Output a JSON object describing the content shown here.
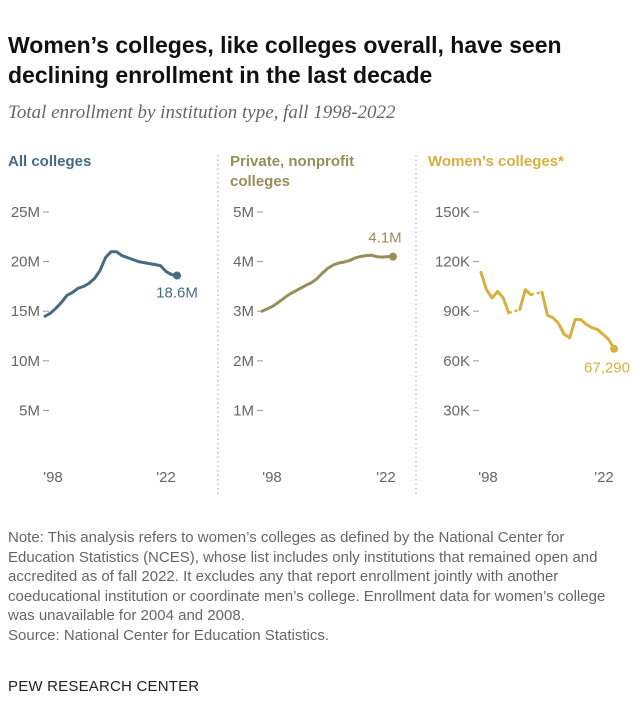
{
  "title": "Women’s colleges, like colleges overall, have seen declining enrollment in the last decade",
  "subtitle": "Total enrollment by institution type, fall 1998-2022",
  "note": "Note: This analysis refers to women’s colleges as defined by the National Center for Education Statistics (NCES), whose list includes only institutions that remained open and accredited as of fall 2022. It excludes any that report enrollment jointly with another coeducational institution or coordinate men’s college. Enrollment data for women’s college was unavailable for 2004 and 2008.",
  "source": "Source: National Center for Education Statistics.",
  "footer": "PEW RESEARCH CENTER",
  "chart_data": [
    {
      "type": "line",
      "title": "All colleges",
      "color": "#466b83",
      "y_unit": "M",
      "ylim": [
        0,
        25
      ],
      "yticks": [
        5,
        10,
        15,
        20,
        25
      ],
      "ytick_labels": [
        "5M",
        "10M",
        "15M",
        "20M",
        "25M"
      ],
      "xtick_labels": [
        "'98",
        "'22"
      ],
      "end_label": "18.6M",
      "x": [
        1998,
        1999,
        2000,
        2001,
        2002,
        2003,
        2004,
        2005,
        2006,
        2007,
        2008,
        2009,
        2010,
        2011,
        2012,
        2013,
        2014,
        2015,
        2016,
        2017,
        2018,
        2019,
        2020,
        2021,
        2022
      ],
      "values": [
        14.5,
        14.8,
        15.3,
        15.9,
        16.6,
        16.9,
        17.3,
        17.5,
        17.8,
        18.3,
        19.1,
        20.4,
        21.0,
        21.0,
        20.6,
        20.4,
        20.2,
        20.0,
        19.9,
        19.8,
        19.7,
        19.6,
        19.0,
        18.7,
        18.6
      ]
    },
    {
      "type": "line",
      "title": "Private, nonprofit colleges",
      "color": "#988e59",
      "y_unit": "M",
      "ylim": [
        0,
        5
      ],
      "yticks": [
        1,
        2,
        3,
        4,
        5
      ],
      "ytick_labels": [
        "1M",
        "2M",
        "3M",
        "4M",
        "5M"
      ],
      "xtick_labels": [
        "'98",
        "'22"
      ],
      "end_label": "4.1M",
      "x": [
        1998,
        1999,
        2000,
        2001,
        2002,
        2003,
        2004,
        2005,
        2006,
        2007,
        2008,
        2009,
        2010,
        2011,
        2012,
        2013,
        2014,
        2015,
        2016,
        2017,
        2018,
        2019,
        2020,
        2021,
        2022
      ],
      "values": [
        3.0,
        3.05,
        3.1,
        3.18,
        3.26,
        3.34,
        3.4,
        3.46,
        3.52,
        3.57,
        3.65,
        3.76,
        3.86,
        3.93,
        3.97,
        3.99,
        4.02,
        4.07,
        4.1,
        4.12,
        4.13,
        4.1,
        4.09,
        4.1,
        4.1
      ]
    },
    {
      "type": "line",
      "title": "Women’s colleges*",
      "color": "#d8b03f",
      "y_unit": "K",
      "ylim": [
        0,
        150000
      ],
      "yticks": [
        30000,
        60000,
        90000,
        120000,
        150000
      ],
      "ytick_labels": [
        "30K",
        "60K",
        "90K",
        "120K",
        "150K"
      ],
      "xtick_labels": [
        "'98",
        "'22"
      ],
      "end_label": "67,290",
      "missing_years": [
        2004,
        2008
      ],
      "x": [
        1998,
        1999,
        2000,
        2001,
        2002,
        2003,
        2004,
        2005,
        2006,
        2007,
        2008,
        2009,
        2010,
        2011,
        2012,
        2013,
        2014,
        2015,
        2016,
        2017,
        2018,
        2019,
        2020,
        2021,
        2022
      ],
      "values": [
        113500,
        103000,
        98000,
        102000,
        98000,
        89000,
        null,
        91000,
        103000,
        100000,
        null,
        101500,
        87500,
        86000,
        82500,
        76000,
        74000,
        85000,
        85000,
        82000,
        80000,
        79000,
        76000,
        73000,
        67290
      ]
    }
  ]
}
